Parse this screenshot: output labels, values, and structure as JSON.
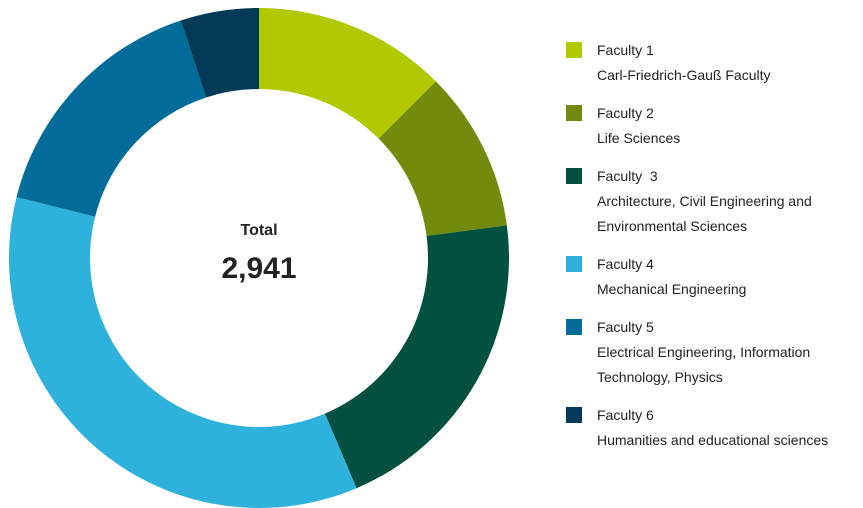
{
  "chart_data": {
    "type": "donut",
    "center_title": "Total",
    "total": {
      "value": 2941,
      "label": "2,941"
    },
    "categories": [
      "Faculty 1",
      "Faculty 2",
      "Faculty  3",
      "Faculty 4",
      "Faculty 5",
      "Faculty 6"
    ],
    "descriptions": [
      "Carl-Friedrich-Gauß Faculty",
      "Life Sciences",
      "Architecture, Civil Engineering and Environmental Sciences",
      "Mechanical Engineering",
      "Electrical Engineering, Information Technology, Physics",
      "Humanities and educational sciences"
    ],
    "values": [
      368,
      306,
      609,
      1038,
      471,
      149
    ],
    "colors": [
      "#b1c903",
      "#728b0d",
      "#02503f",
      "#2eb2dc",
      "#016c99",
      "#033a58"
    ],
    "legend": "right"
  }
}
